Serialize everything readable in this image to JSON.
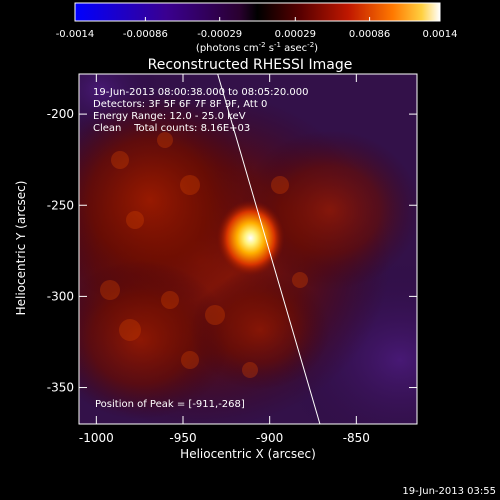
{
  "chart_data": {
    "type": "heatmap",
    "title": "Reconstructed RHESSI Image",
    "xlabel": "Heliocentric X (arcsec)",
    "ylabel": "Heliocentric Y (arcsec)",
    "xlim": [
      -1010,
      -815
    ],
    "ylim": [
      -370,
      -178
    ],
    "x_ticks": [
      -1000,
      -950,
      -900,
      -850
    ],
    "y_ticks": [
      -200,
      -250,
      -300,
      -350
    ],
    "colorbar": {
      "ticks": [
        "-0.0014",
        "-0.00086",
        "-0.00029",
        "0.00029",
        "0.00086",
        "0.0014"
      ],
      "range": [
        -0.0014,
        0.0014
      ],
      "unit_main": "(photons cm",
      "unit_exp1": "-2",
      "unit_mid": " s",
      "unit_exp2": "-1",
      "unit_tail": " asec",
      "unit_exp3": "-2",
      "unit_close": ")"
    },
    "annotations": [
      "19-Jun-2013 08:00:38.000 to 08:05:20.000",
      "Detectors: 3F 5F 6F 7F 8F 9F, Att 0",
      "Energy Range: 12.0 - 25.0 keV",
      "Clean    Total counts: 8.16E+03"
    ],
    "peak_label": "Position of Peak = [-911,-268]",
    "peak": [
      -911,
      -268
    ],
    "limb_line": [
      [
        -930,
        -178
      ],
      [
        -871,
        -370
      ]
    ]
  },
  "footer": {
    "timestamp": "19-Jun-2013 03:55"
  }
}
